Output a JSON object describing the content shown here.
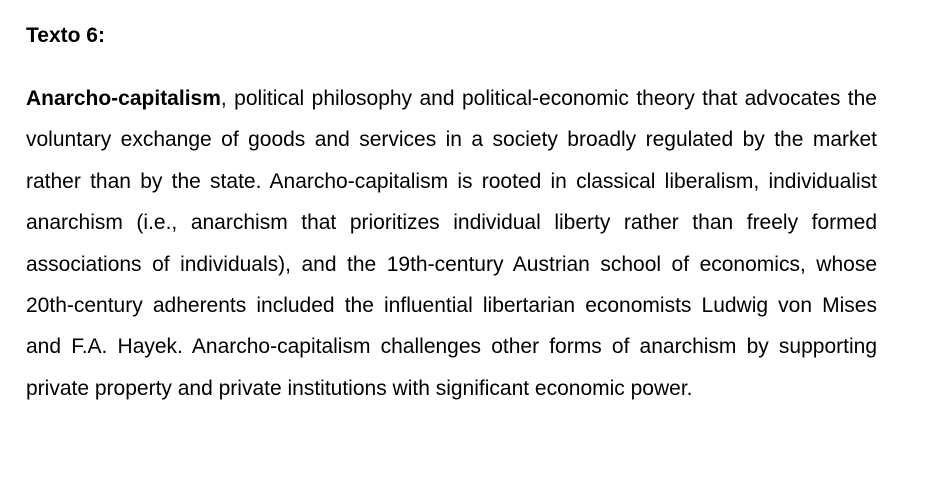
{
  "heading": "Texto 6:",
  "paragraph": {
    "term": "Anarcho-capitalism",
    "text": ", political philosophy and political-economic theory that advocates the voluntary exchange of goods and services in a society broadly regulated by the market rather than by the state. Anarcho-capitalism is rooted in classical liberalism, individualist anarchism (i.e., anarchism that prioritizes individual liberty rather than freely formed associations of individuals), and the 19th-century Austrian school of economics, whose 20th-century adherents included the influential libertarian economists Ludwig von Mises and F.A. Hayek. Anarcho-capitalism challenges other forms of anarchism by supporting private property and private institutions with significant economic power."
  }
}
